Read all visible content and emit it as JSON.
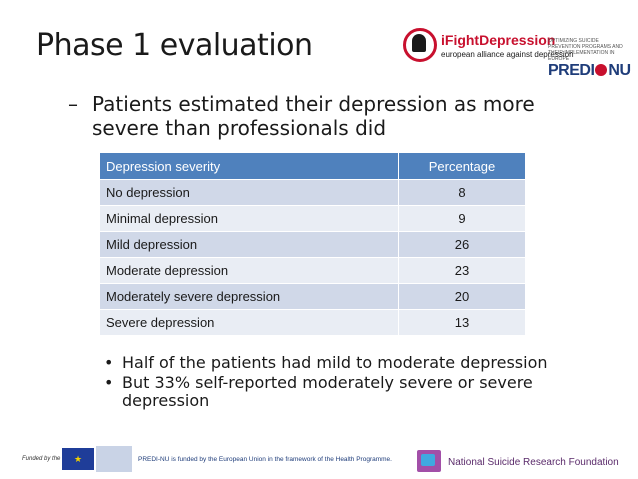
{
  "slide": {
    "title": "Phase 1 evaluation"
  },
  "logos": {
    "ifight_brand": "iFightDepression",
    "ifight_tagline": "european alliance against depression",
    "predi_small": "OPTIMIZING SUICIDE PREVENTION PROGRAMS AND THEIR IMPLEMENTATION IN EUROPE",
    "predi_big_a": "PREDI",
    "predi_big_b": "NU"
  },
  "main_bullet": {
    "dash": "–",
    "text": "Patients estimated their depression as more severe than professionals did"
  },
  "table": {
    "headers": [
      "Depression severity",
      "Percentage"
    ],
    "rows": [
      [
        "No depression",
        "8"
      ],
      [
        "Minimal depression",
        "9"
      ],
      [
        "Mild depression",
        "26"
      ],
      [
        "Moderate depression",
        "23"
      ],
      [
        "Moderately severe depression",
        "20"
      ],
      [
        "Severe depression",
        "13"
      ]
    ]
  },
  "sub_bullets": {
    "marker": "•",
    "items": [
      "Half of the patients had mild to moderate depression",
      "But 33% self-reported moderately severe or severe depression"
    ]
  },
  "footer": {
    "funded_by": "Funded by the",
    "funding_text": "PREDI-NU   is funded by the European Union in the framework of the Health Programme.",
    "nsrf": "National Suicide Research Foundation"
  },
  "colors": {
    "header_blue": "#4f81bd",
    "row_odd": "#d0d8e8",
    "row_even": "#e9edf4",
    "ifight_red": "#c8102e"
  }
}
